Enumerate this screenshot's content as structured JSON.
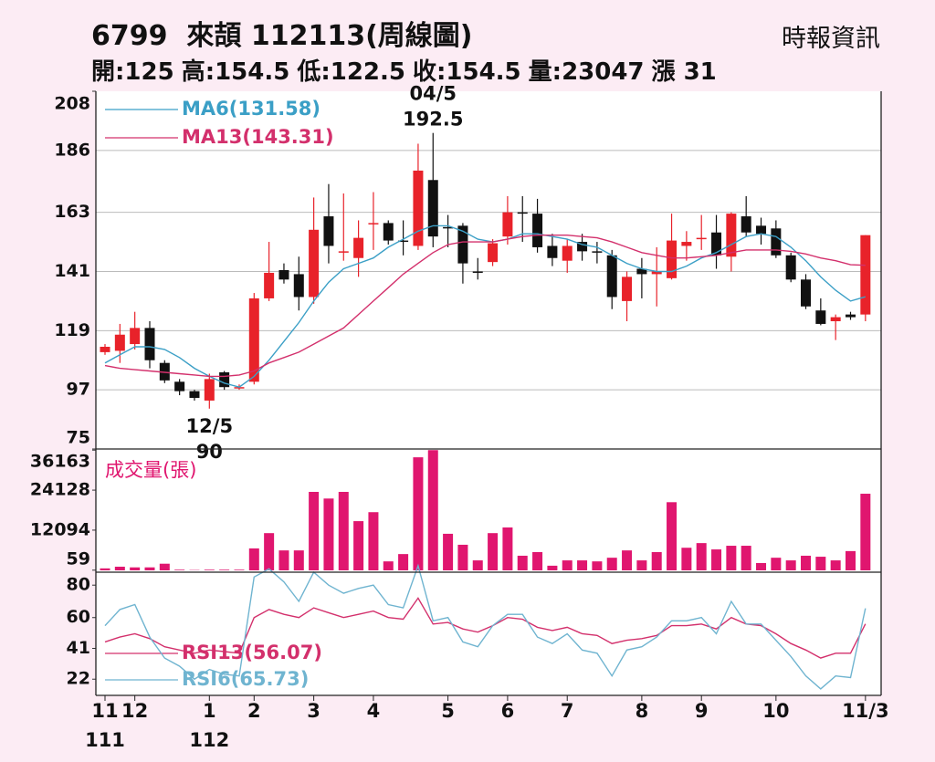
{
  "header": {
    "title": "6799  來頡 112113(周線圖)",
    "source": "時報資訊",
    "summary": [
      {
        "label": "開:",
        "value": 125
      },
      {
        "label": "高:",
        "value": 154.5
      },
      {
        "label": "低:",
        "value": 122.5
      },
      {
        "label": "收:",
        "value": 154.5
      },
      {
        "label": "量:",
        "value": 23047
      },
      {
        "label": "漲 ",
        "value": 31
      }
    ]
  },
  "chart_data": [
    {
      "type": "candlestick",
      "categories": [
        "11",
        null,
        "12",
        null,
        null,
        null,
        null,
        "1",
        null,
        null,
        "2",
        null,
        null,
        null,
        "3",
        null,
        null,
        null,
        "4",
        null,
        null,
        null,
        null,
        "5",
        null,
        null,
        null,
        "6",
        null,
        null,
        null,
        "7",
        null,
        null,
        null,
        null,
        "8",
        null,
        null,
        null,
        "9",
        null,
        null,
        null,
        null,
        "10",
        null,
        null,
        null,
        null,
        null,
        "11/3"
      ],
      "year_labels": [
        "111",
        null,
        null,
        null,
        null,
        null,
        null,
        "112",
        null,
        null,
        null,
        null,
        null,
        null,
        null,
        null,
        null,
        null,
        null,
        null,
        null,
        null,
        null,
        null,
        null,
        null,
        null,
        null,
        null,
        null,
        null,
        null,
        null,
        null,
        null,
        null,
        null,
        null,
        null,
        null,
        null,
        null,
        null,
        null,
        null,
        null,
        null,
        null,
        null,
        null,
        null,
        null
      ],
      "open": [
        111,
        111.5,
        114,
        120,
        107,
        100,
        96.5,
        93,
        103.5,
        98,
        100,
        131,
        141.5,
        140,
        131.5,
        161.5,
        148,
        146,
        158.5,
        159,
        152.5,
        150.5,
        175,
        157.5,
        158,
        141,
        144.5,
        154,
        163,
        162.5,
        150.5,
        145,
        152,
        148.5,
        147,
        130,
        142,
        140,
        138.5,
        150.5,
        153,
        155.5,
        146.5,
        161.5,
        158,
        157,
        147,
        138,
        126.5,
        122.5,
        125,
        125
      ],
      "high": [
        114,
        121.5,
        126,
        122.5,
        108,
        101,
        97,
        103,
        104,
        99,
        133,
        152,
        144,
        146.5,
        168.5,
        173.5,
        170,
        160,
        170.5,
        160,
        160,
        188.5,
        192.5,
        162,
        159,
        146,
        153,
        169,
        169,
        168,
        155,
        153,
        155,
        152,
        149,
        141,
        146,
        150,
        162.5,
        156,
        162,
        162,
        163,
        169,
        161,
        160,
        148,
        140,
        131,
        125,
        126,
        154.5
      ],
      "low": [
        110,
        107,
        112,
        105,
        99.5,
        95,
        93,
        90,
        97,
        97,
        99,
        130,
        136.5,
        126.5,
        129,
        144,
        145,
        139,
        149,
        151,
        147,
        149,
        150,
        150,
        136.5,
        138,
        143,
        151,
        152,
        148,
        143,
        140.5,
        145,
        144,
        127,
        122.5,
        131,
        128,
        138,
        145,
        149,
        142,
        141,
        154,
        151,
        146,
        137,
        127,
        121,
        115.5,
        123,
        122.5
      ],
      "close": [
        113,
        117.5,
        120,
        108,
        100.5,
        96.5,
        94,
        101,
        98,
        98,
        131,
        140.5,
        138,
        131.5,
        156.5,
        150.5,
        148.5,
        153.5,
        159,
        152.5,
        152,
        178.5,
        154,
        157,
        144,
        140.5,
        151.5,
        163,
        162.5,
        150,
        146,
        150.5,
        148.5,
        148,
        131.5,
        139,
        140,
        141,
        152.5,
        152,
        153.5,
        147,
        162.5,
        155.5,
        155,
        147,
        138,
        128,
        121.5,
        124,
        124,
        154.5
      ],
      "up_color": "#e8222a",
      "down_color": "#111111",
      "series": [
        {
          "name": "MA6(131.58)",
          "color": "#3b9fc6",
          "values": [
            107,
            110,
            113,
            113,
            112,
            109,
            105,
            102,
            99.5,
            98,
            102,
            108,
            115,
            122,
            130,
            137,
            142,
            144,
            146,
            150,
            153,
            156,
            158,
            158,
            156,
            153,
            152,
            153,
            155,
            155,
            154,
            153,
            151,
            150,
            147,
            144,
            142,
            141,
            141,
            143,
            146,
            148,
            151,
            154,
            155,
            154,
            150,
            145,
            139,
            134,
            130,
            131.58
          ]
        },
        {
          "name": "MA13(143.31)",
          "color": "#d3306c",
          "values": [
            106,
            105,
            104.5,
            104,
            103.5,
            103,
            102.5,
            102,
            102,
            102.5,
            104,
            107,
            109,
            111,
            114,
            117,
            120,
            125,
            130,
            135,
            140,
            144,
            148,
            151,
            152,
            152,
            152,
            153,
            154,
            154.5,
            154.5,
            154.5,
            154,
            153.5,
            152,
            150,
            148,
            147,
            146,
            146,
            146.5,
            147,
            148,
            149,
            149,
            149,
            148.5,
            147.5,
            146,
            145,
            143.5,
            143.31
          ]
        }
      ],
      "annotations": [
        {
          "text": "04/5",
          "value": 192.5
        },
        {
          "text": "12/5",
          "value": 90
        }
      ],
      "ylim": [
        75,
        208
      ],
      "yticks": [
        75,
        97,
        119,
        141,
        163,
        186,
        208
      ],
      "grid": true
    },
    {
      "type": "bar",
      "title": "成交量(張)",
      "color": "#e0166f",
      "values": [
        600,
        1100,
        900,
        900,
        2000,
        200,
        100,
        200,
        200,
        200,
        6600,
        11200,
        6000,
        6000,
        23600,
        21600,
        23600,
        14800,
        17500,
        2700,
        4900,
        34000,
        36163,
        11000,
        7700,
        3000,
        11200,
        12900,
        4400,
        5500,
        1400,
        3000,
        3000,
        2700,
        3800,
        6000,
        3000,
        5500,
        20500,
        6800,
        8200,
        6300,
        7400,
        7400,
        2200,
        3800,
        3000,
        4400,
        4100,
        3000,
        5800,
        23047
      ],
      "ylim": [
        0,
        36500
      ],
      "yticks": [
        59,
        12094,
        24128,
        36163
      ],
      "grid": false
    },
    {
      "type": "line",
      "series": [
        {
          "name": "RSI13(56.07)",
          "color": "#d3306c",
          "values": [
            45,
            48,
            50,
            47,
            42,
            40,
            38,
            40,
            39,
            38,
            60,
            65,
            62,
            60,
            66,
            63,
            60,
            62,
            64,
            60,
            59,
            72,
            56,
            57,
            53,
            51,
            55,
            60,
            59,
            54,
            52,
            54,
            50,
            49,
            44,
            46,
            47,
            49,
            55,
            55,
            56,
            53,
            60,
            56,
            55,
            50,
            44,
            40,
            35,
            38,
            38,
            56.07
          ]
        },
        {
          "name": "RSI6(65.73)",
          "color": "#6fb4d0",
          "values": [
            55,
            65,
            68,
            48,
            35,
            30,
            22,
            28,
            25,
            24,
            85,
            90,
            82,
            70,
            88,
            80,
            75,
            78,
            80,
            68,
            66,
            92,
            58,
            60,
            45,
            42,
            55,
            62,
            62,
            48,
            44,
            50,
            40,
            38,
            24,
            40,
            42,
            48,
            58,
            58,
            60,
            50,
            70,
            56,
            56,
            46,
            36,
            24,
            16,
            24,
            23,
            65.73
          ]
        }
      ],
      "ylim": [
        12,
        88
      ],
      "yticks": [
        22,
        41,
        60,
        80
      ],
      "grid": false
    }
  ]
}
